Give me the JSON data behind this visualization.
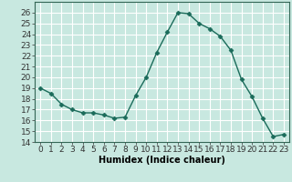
{
  "x": [
    0,
    1,
    2,
    3,
    4,
    5,
    6,
    7,
    8,
    9,
    10,
    11,
    12,
    13,
    14,
    15,
    16,
    17,
    18,
    19,
    20,
    21,
    22,
    23
  ],
  "y": [
    19,
    18.5,
    17.5,
    17,
    16.7,
    16.7,
    16.5,
    16.2,
    16.3,
    18.3,
    20.0,
    22.3,
    24.2,
    26.0,
    25.9,
    25.0,
    24.5,
    23.8,
    22.5,
    19.8,
    18.2,
    16.2,
    14.5,
    14.7
  ],
  "xlabel": "Humidex (Indice chaleur)",
  "ylim": [
    14,
    27
  ],
  "xlim": [
    -0.5,
    23.5
  ],
  "yticks": [
    14,
    15,
    16,
    17,
    18,
    19,
    20,
    21,
    22,
    23,
    24,
    25,
    26
  ],
  "xticks": [
    0,
    1,
    2,
    3,
    4,
    5,
    6,
    7,
    8,
    9,
    10,
    11,
    12,
    13,
    14,
    15,
    16,
    17,
    18,
    19,
    20,
    21,
    22,
    23
  ],
  "line_color": "#1a6b5a",
  "marker": "D",
  "marker_size": 2.5,
  "bg_color": "#c8e8e0",
  "grid_color": "#ffffff",
  "label_fontsize": 7,
  "tick_fontsize": 6.5
}
